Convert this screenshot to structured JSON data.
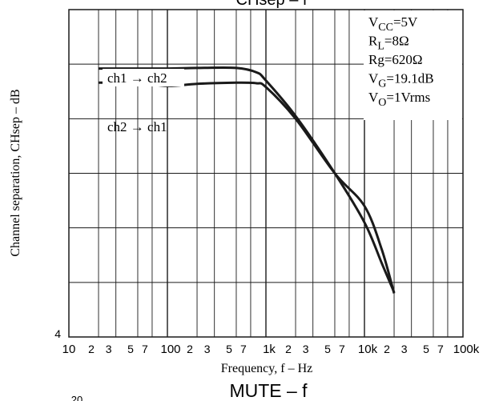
{
  "chart_data": {
    "type": "line",
    "title": "CHsep – f",
    "xlabel": "Frequency, f – Hz",
    "ylabel": "Channel separation, CHsep – dB",
    "x_scale": "log",
    "xlim": [
      10,
      100000
    ],
    "x_ticks": [
      {
        "value": 10,
        "label": "10"
      },
      {
        "value": 20,
        "label": "2"
      },
      {
        "value": 30,
        "label": "3"
      },
      {
        "value": 50,
        "label": "5"
      },
      {
        "value": 70,
        "label": "7"
      },
      {
        "value": 100,
        "label": "100"
      },
      {
        "value": 200,
        "label": "2"
      },
      {
        "value": 300,
        "label": "3"
      },
      {
        "value": 500,
        "label": "5"
      },
      {
        "value": 700,
        "label": "7"
      },
      {
        "value": 1000,
        "label": "1k"
      },
      {
        "value": 2000,
        "label": "2"
      },
      {
        "value": 3000,
        "label": "3"
      },
      {
        "value": 5000,
        "label": "5"
      },
      {
        "value": 7000,
        "label": "7"
      },
      {
        "value": 10000,
        "label": "10k"
      },
      {
        "value": 20000,
        "label": "2"
      },
      {
        "value": 30000,
        "label": "3"
      },
      {
        "value": 50000,
        "label": "5"
      },
      {
        "value": 70000,
        "label": "7"
      },
      {
        "value": 100000,
        "label": "100k"
      }
    ],
    "ylim": [
      0,
      6
    ],
    "y_ticks": [
      {
        "value": 0,
        "label": "4"
      }
    ],
    "grid": true,
    "annotation_lines": [
      "V_CC=5V",
      "R_L=8Ω",
      "Rg=620Ω",
      "V_G=19.1dB",
      "V_O=1Vrms"
    ],
    "annotation_box": {
      "lines": [
        {
          "main": "V",
          "sub": "CC",
          "rest": "=5V"
        },
        {
          "main": "R",
          "sub": "L",
          "rest": "=8Ω"
        },
        {
          "main": "Rg=620Ω",
          "sub": "",
          "rest": ""
        },
        {
          "main": "V",
          "sub": "G",
          "rest": "=19.1dB"
        },
        {
          "main": "V",
          "sub": "O",
          "rest": "=1Vrms"
        }
      ]
    },
    "series": [
      {
        "name": "ch1 → ch2",
        "x": [
          20,
          50,
          100,
          200,
          500,
          800,
          1000,
          2000,
          5000,
          10000,
          15000,
          20000
        ],
        "y": [
          4.92,
          4.92,
          4.92,
          4.93,
          4.93,
          4.85,
          4.7,
          4.05,
          3.0,
          2.1,
          1.35,
          0.82
        ]
      },
      {
        "name": "ch2 → ch1",
        "x": [
          20,
          50,
          100,
          200,
          500,
          800,
          1000,
          2000,
          5000,
          10000,
          15000,
          20000
        ],
        "y": [
          4.66,
          4.66,
          4.6,
          4.64,
          4.66,
          4.65,
          4.58,
          4.0,
          3.0,
          2.4,
          1.6,
          0.8
        ]
      }
    ],
    "series_label_text": [
      "ch1 → ch2",
      "ch2 → ch1"
    ]
  },
  "footer": {
    "next_title": "MUTE – f",
    "partial_tick": "20"
  }
}
